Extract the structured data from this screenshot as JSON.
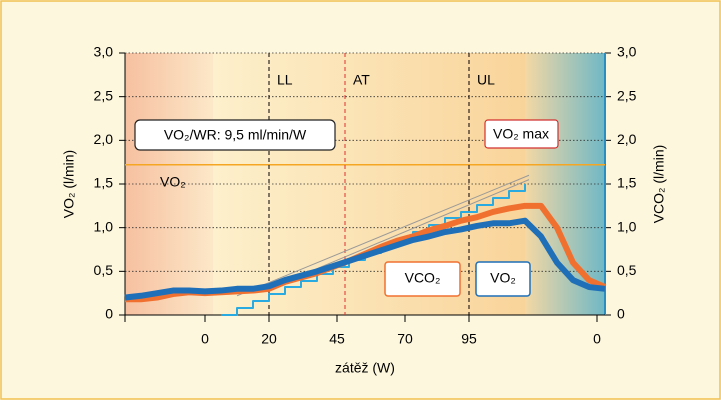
{
  "chart_data": {
    "type": "line",
    "xlabel": "zátěž (W)",
    "ylabel": "VO₂ (l/min)",
    "y2label": "VCO₂ (l/min)",
    "xlim": [
      0,
      120
    ],
    "xticks": [
      {
        "value": 0,
        "label": null
      },
      {
        "value": 20,
        "label": "0"
      },
      {
        "value": 36,
        "label": "20"
      },
      {
        "value": 53,
        "label": "45"
      },
      {
        "value": 70,
        "label": "70"
      },
      {
        "value": 86,
        "label": "95"
      },
      {
        "value": 118,
        "label": "0"
      }
    ],
    "ylim": [
      0,
      3
    ],
    "yticks": [
      {
        "value": 0,
        "label": "0"
      },
      {
        "value": 0.5,
        "label": "0,5"
      },
      {
        "value": 1,
        "label": "1,0"
      },
      {
        "value": 1.5,
        "label": "1,5"
      },
      {
        "value": 2,
        "label": "2,0"
      },
      {
        "value": 2.5,
        "label": "2,5"
      },
      {
        "value": 3,
        "label": "3,0"
      }
    ],
    "y2lim": [
      0,
      3
    ],
    "y2ticks": [
      {
        "value": 0,
        "label": "0"
      },
      {
        "value": 0.5,
        "label": "0,5"
      },
      {
        "value": 1,
        "label": "1,0"
      },
      {
        "value": 1.5,
        "label": "1,5"
      },
      {
        "value": 2,
        "label": "2,0"
      },
      {
        "value": 2.5,
        "label": "2,5"
      },
      {
        "value": 3,
        "label": "3,0"
      }
    ],
    "grid": true,
    "vlines": [
      {
        "label": "LL",
        "x": 36,
        "color": "#000000"
      },
      {
        "label": "AT",
        "x": 55,
        "color": "#e03030"
      },
      {
        "label": "UL",
        "x": 86,
        "color": "#000000"
      }
    ],
    "hline": {
      "y": 1.72,
      "color": "#f5a623"
    },
    "annotations": {
      "wr": "VO₂/WR: 9,5 ml/min/W",
      "vo2max": "VO₂ max"
    },
    "series": [
      {
        "color": "#9a9a9a",
        "style": "thin",
        "x": [
          28,
          101
        ],
        "values": [
          0.22,
          1.6
        ]
      },
      {
        "color": "#9a9a9a",
        "style": "thin",
        "x": [
          36,
          101
        ],
        "values": [
          0.3,
          1.55
        ]
      },
      {
        "color": "#29abe2",
        "style": "step",
        "x": [
          24,
          28,
          32,
          36,
          40,
          44,
          48,
          52,
          56,
          60,
          64,
          68,
          72,
          76,
          80,
          84,
          88,
          92,
          96,
          100
        ],
        "values": [
          0,
          0.08,
          0.16,
          0.24,
          0.32,
          0.39,
          0.47,
          0.55,
          0.63,
          0.71,
          0.79,
          0.87,
          0.95,
          1.03,
          1.11,
          1.18,
          1.26,
          1.34,
          1.42,
          1.5
        ]
      },
      {
        "name": "VCO₂",
        "color": "#f07030",
        "style": "thick",
        "x": [
          0,
          4,
          8,
          12,
          16,
          20,
          24,
          28,
          32,
          36,
          40,
          44,
          48,
          52,
          56,
          60,
          64,
          68,
          72,
          76,
          80,
          84,
          88,
          92,
          96,
          100,
          104,
          108,
          112,
          116,
          120
        ],
        "values": [
          0.18,
          0.18,
          0.2,
          0.24,
          0.26,
          0.25,
          0.26,
          0.27,
          0.28,
          0.3,
          0.38,
          0.43,
          0.48,
          0.55,
          0.62,
          0.7,
          0.78,
          0.85,
          0.9,
          0.97,
          1.02,
          1.08,
          1.12,
          1.18,
          1.22,
          1.25,
          1.25,
          1.0,
          0.6,
          0.4,
          0.32
        ]
      },
      {
        "name": "VO₂",
        "color": "#1f6fb8",
        "style": "thick",
        "x": [
          0,
          4,
          8,
          12,
          16,
          20,
          24,
          28,
          32,
          36,
          40,
          44,
          48,
          52,
          56,
          60,
          64,
          68,
          72,
          76,
          80,
          84,
          88,
          92,
          96,
          100,
          104,
          108,
          112,
          116,
          120
        ],
        "values": [
          0.2,
          0.22,
          0.25,
          0.28,
          0.28,
          0.27,
          0.28,
          0.3,
          0.3,
          0.33,
          0.4,
          0.45,
          0.5,
          0.56,
          0.62,
          0.68,
          0.74,
          0.8,
          0.86,
          0.9,
          0.95,
          0.98,
          1.02,
          1.05,
          1.05,
          1.08,
          0.9,
          0.6,
          0.4,
          0.32,
          0.3
        ]
      }
    ]
  }
}
